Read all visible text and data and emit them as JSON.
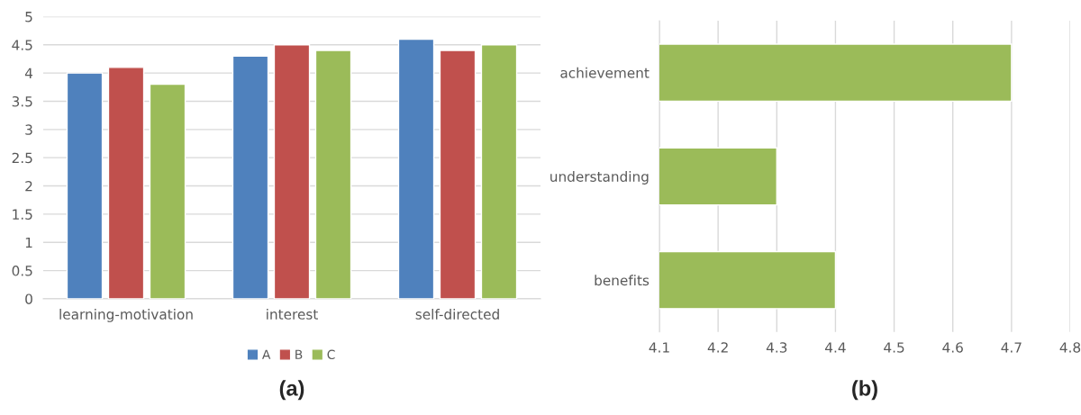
{
  "chart_data": [
    {
      "type": "bar",
      "categories": [
        "learning-motivation",
        "interest",
        "self-directed"
      ],
      "series": [
        {
          "name": "A",
          "color": "#4f81bd",
          "values": [
            4.0,
            4.3,
            4.6
          ]
        },
        {
          "name": "B",
          "color": "#c0504d",
          "values": [
            4.1,
            4.5,
            4.4
          ]
        },
        {
          "name": "C",
          "color": "#9bbb59",
          "values": [
            3.8,
            4.4,
            4.5
          ]
        }
      ],
      "ylim": [
        0,
        5
      ],
      "yticks": [
        0,
        0.5,
        1,
        1.5,
        2,
        2.5,
        3,
        3.5,
        4,
        4.5,
        5
      ],
      "grid": "y",
      "legend": "bottom",
      "annotations": [
        "(a)"
      ]
    },
    {
      "type": "bar",
      "orientation": "horizontal",
      "categories": [
        "achievement",
        "understanding",
        "benefits"
      ],
      "values": [
        4.7,
        4.3,
        4.4
      ],
      "color": "#9bbb59",
      "xlim": [
        4.1,
        4.8
      ],
      "xticks": [
        4.1,
        4.2,
        4.3,
        4.4,
        4.5,
        4.6,
        4.7,
        4.8
      ],
      "grid": "x",
      "annotations": [
        "(b)"
      ]
    }
  ]
}
